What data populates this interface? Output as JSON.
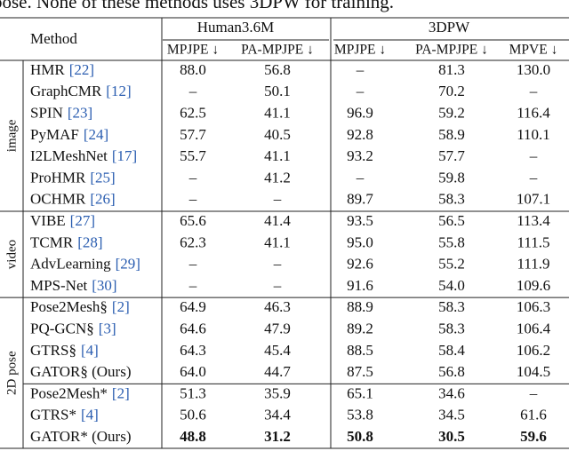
{
  "caption_fragment": "pose. None of these methods uses 3DPW for training.",
  "table": {
    "header": {
      "method": "Method",
      "groups": [
        "Human3.6M",
        "3DPW"
      ],
      "columns": [
        "MPJPE ↓",
        "PA-MPJPE ↓",
        "MPJPE ↓",
        "PA-MPJPE ↓",
        "MPVE ↓"
      ]
    },
    "sections": [
      {
        "label": "image",
        "blocks": [
          [
            {
              "method": "HMR",
              "ref": "[22]",
              "values": [
                "88.0",
                "56.8",
                "–",
                "81.3",
                "130.0"
              ]
            },
            {
              "method": "GraphCMR",
              "ref": "[12]",
              "values": [
                "–",
                "50.1",
                "–",
                "70.2",
                "–"
              ]
            },
            {
              "method": "SPIN",
              "ref": "[23]",
              "values": [
                "62.5",
                "41.1",
                "96.9",
                "59.2",
                "116.4"
              ]
            },
            {
              "method": "PyMAF",
              "ref": "[24]",
              "values": [
                "57.7",
                "40.5",
                "92.8",
                "58.9",
                "110.1"
              ]
            },
            {
              "method": "I2LMeshNet",
              "ref": "[17]",
              "values": [
                "55.7",
                "41.1",
                "93.2",
                "57.7",
                "–"
              ]
            },
            {
              "method": "ProHMR",
              "ref": "[25]",
              "values": [
                "–",
                "41.2",
                "–",
                "59.8",
                "–"
              ]
            },
            {
              "method": "OCHMR",
              "ref": "[26]",
              "values": [
                "–",
                "–",
                "89.7",
                "58.3",
                "107.1"
              ]
            }
          ]
        ]
      },
      {
        "label": "video",
        "blocks": [
          [
            {
              "method": "VIBE",
              "ref": "[27]",
              "values": [
                "65.6",
                "41.4",
                "93.5",
                "56.5",
                "113.4"
              ]
            },
            {
              "method": "TCMR",
              "ref": "[28]",
              "values": [
                "62.3",
                "41.1",
                "95.0",
                "55.8",
                "111.5"
              ]
            },
            {
              "method": "AdvLearning",
              "ref": "[29]",
              "values": [
                "–",
                "–",
                "92.6",
                "55.2",
                "111.9"
              ]
            },
            {
              "method": "MPS-Net",
              "ref": "[30]",
              "values": [
                "–",
                "–",
                "91.6",
                "54.0",
                "109.6"
              ]
            }
          ]
        ]
      },
      {
        "label": "2D pose",
        "blocks": [
          [
            {
              "method": "Pose2Mesh§",
              "ref": "[2]",
              "values": [
                "64.9",
                "46.3",
                "88.9",
                "58.3",
                "106.3"
              ]
            },
            {
              "method": "PQ-GCN§",
              "ref": "[3]",
              "values": [
                "64.6",
                "47.9",
                "89.2",
                "58.3",
                "106.4"
              ]
            },
            {
              "method": "GTRS§",
              "ref": "[4]",
              "values": [
                "64.3",
                "45.4",
                "88.5",
                "58.4",
                "106.2"
              ]
            },
            {
              "method": "GATOR§ (Ours)",
              "values": [
                "64.0",
                "44.7",
                "87.5",
                "56.8",
                "104.5"
              ]
            }
          ],
          [
            {
              "method": "Pose2Mesh*",
              "ref": "[2]",
              "values": [
                "51.3",
                "35.9",
                "65.1",
                "34.6",
                "–"
              ]
            },
            {
              "method": "GTRS*",
              "ref": "[4]",
              "values": [
                "50.6",
                "34.4",
                "53.8",
                "34.5",
                "61.6"
              ]
            },
            {
              "method": "GATOR* (Ours)",
              "values": [
                "48.8",
                "31.2",
                "50.8",
                "30.5",
                "59.6"
              ],
              "bold": true
            }
          ]
        ]
      }
    ]
  }
}
